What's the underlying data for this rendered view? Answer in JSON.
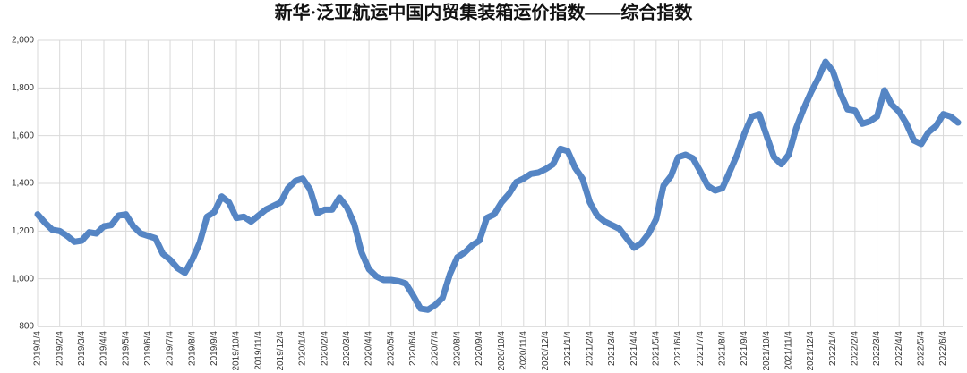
{
  "chart_data": {
    "type": "line",
    "title": "新华·泛亚航运中国内贸集装箱运价指数——综合指数",
    "categories": [
      "2019/1/4",
      null,
      null,
      "2019/2/4",
      null,
      null,
      "2019/3/4",
      null,
      null,
      "2019/4/4",
      null,
      null,
      "2019/5/4",
      null,
      null,
      "2019/6/4",
      null,
      null,
      "2019/7/4",
      null,
      null,
      "2019/8/4",
      null,
      null,
      "2019/9/4",
      null,
      null,
      "2019/10/4",
      null,
      null,
      "2019/11/4",
      null,
      null,
      "2019/12/4",
      null,
      null,
      "2020/1/4",
      null,
      null,
      "2020/2/4",
      null,
      null,
      "2020/3/4",
      null,
      null,
      "2020/4/4",
      null,
      null,
      "2020/5/4",
      null,
      null,
      "2020/6/4",
      null,
      null,
      "2020/7/4",
      null,
      null,
      "2020/8/4",
      null,
      null,
      "2020/9/4",
      null,
      null,
      "2020/10/4",
      null,
      null,
      "2020/11/4",
      null,
      null,
      "2020/12/4",
      null,
      null,
      "2021/1/4",
      null,
      null,
      "2021/2/4",
      null,
      null,
      "2021/3/4",
      null,
      null,
      "2021/4/4",
      null,
      null,
      "2021/5/4",
      null,
      null,
      "2021/6/4",
      null,
      null,
      "2021/7/4",
      null,
      null,
      "2021/8/4",
      null,
      null,
      "2021/9/4",
      null,
      null,
      "2021/10/4",
      null,
      null,
      "2021/11/4",
      null,
      null,
      "2021/12/4",
      null,
      null,
      "2022/1/4",
      null,
      null,
      "2022/2/4",
      null,
      null,
      "2022/3/4",
      null,
      null,
      "2022/4/4",
      null,
      null,
      "2022/5/4",
      null,
      null,
      "2022/6/4",
      null,
      null
    ],
    "series": [
      {
        "color": "#5585c4",
        "values": [
          1270,
          1235,
          1205,
          1200,
          1180,
          1155,
          1160,
          1195,
          1190,
          1220,
          1225,
          1265,
          1270,
          1220,
          1190,
          1180,
          1170,
          1105,
          1080,
          1045,
          1025,
          1080,
          1150,
          1260,
          1280,
          1345,
          1320,
          1255,
          1260,
          1240,
          1265,
          1290,
          1305,
          1320,
          1380,
          1410,
          1420,
          1375,
          1275,
          1290,
          1290,
          1340,
          1300,
          1230,
          1110,
          1040,
          1010,
          995,
          995,
          990,
          980,
          930,
          875,
          870,
          890,
          920,
          1020,
          1090,
          1110,
          1140,
          1160,
          1255,
          1270,
          1320,
          1355,
          1405,
          1420,
          1440,
          1445,
          1460,
          1480,
          1545,
          1535,
          1465,
          1420,
          1320,
          1265,
          1240,
          1225,
          1210,
          1170,
          1130,
          1150,
          1190,
          1250,
          1390,
          1430,
          1510,
          1520,
          1505,
          1450,
          1390,
          1370,
          1380,
          1450,
          1520,
          1610,
          1680,
          1690,
          1600,
          1510,
          1480,
          1520,
          1630,
          1710,
          1780,
          1840,
          1910,
          1870,
          1780,
          1710,
          1705,
          1650,
          1660,
          1680,
          1790,
          1730,
          1700,
          1650,
          1580,
          1565,
          1615,
          1640,
          1690,
          1680,
          1655
        ]
      }
    ],
    "ylim": [
      800,
      2000
    ],
    "yticks": [
      800,
      {
        "value": 1000,
        "label": "1,000"
      },
      {
        "value": 1200,
        "label": "1,200"
      },
      {
        "value": 1400,
        "label": "1,400"
      },
      {
        "value": 1600,
        "label": "1,600"
      },
      {
        "value": 1800,
        "label": "1,800"
      },
      {
        "value": 2000,
        "label": "2,000"
      }
    ],
    "grid": true
  }
}
